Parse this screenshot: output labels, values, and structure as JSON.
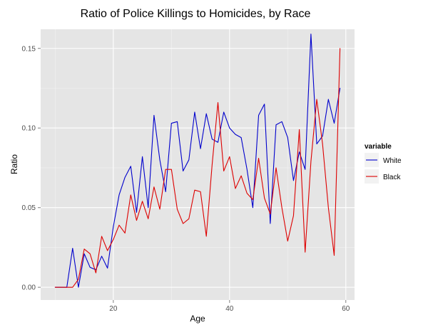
{
  "chart_data": {
    "type": "line",
    "title": "Ratio of Police Killings to Homicides, by Race",
    "xlabel": "Age",
    "ylabel": "Ratio",
    "xlim": [
      7.5,
      61.5
    ],
    "ylim": [
      -0.008,
      0.162
    ],
    "xticks": [
      20,
      40,
      60
    ],
    "xtick_labels": [
      "20",
      "40",
      "60"
    ],
    "yticks": [
      0.0,
      0.05,
      0.1,
      0.15
    ],
    "ytick_labels": [
      "0.00",
      "0.05",
      "0.10",
      "0.15"
    ],
    "grid": true,
    "legend_title": "variable",
    "legend_position": "right",
    "series": [
      {
        "name": "White",
        "color": "#0000cc",
        "x": [
          10,
          11,
          12,
          13,
          14,
          15,
          16,
          17,
          18,
          19,
          20,
          21,
          22,
          23,
          24,
          25,
          26,
          27,
          28,
          29,
          30,
          31,
          32,
          33,
          34,
          35,
          36,
          37,
          38,
          39,
          40,
          41,
          42,
          43,
          44,
          45,
          46,
          47,
          48,
          49,
          50,
          51,
          52,
          53,
          54,
          55,
          56,
          57,
          58,
          59
        ],
        "values": [
          0.0,
          0.0,
          0.0,
          0.0245,
          0.0,
          0.021,
          0.0125,
          0.011,
          0.0195,
          0.012,
          0.038,
          0.058,
          0.069,
          0.076,
          0.047,
          0.082,
          0.05,
          0.108,
          0.08,
          0.06,
          0.103,
          0.104,
          0.073,
          0.08,
          0.11,
          0.087,
          0.109,
          0.093,
          0.091,
          0.11,
          0.1,
          0.096,
          0.094,
          0.074,
          0.05,
          0.108,
          0.115,
          0.04,
          0.102,
          0.104,
          0.094,
          0.067,
          0.085,
          0.074,
          0.159,
          0.09,
          0.095,
          0.118,
          0.103,
          0.125
        ]
      },
      {
        "name": "Black",
        "color": "#dd0000",
        "x": [
          10,
          11,
          12,
          13,
          14,
          15,
          16,
          17,
          18,
          19,
          20,
          21,
          22,
          23,
          24,
          25,
          26,
          27,
          28,
          29,
          30,
          31,
          32,
          33,
          34,
          35,
          36,
          37,
          38,
          39,
          40,
          41,
          42,
          43,
          44,
          45,
          46,
          47,
          48,
          49,
          50,
          51,
          52,
          53,
          54,
          55,
          56,
          57,
          58,
          59
        ],
        "values": [
          0.0,
          0.0,
          0.0,
          0.0,
          0.005,
          0.024,
          0.021,
          0.009,
          0.032,
          0.023,
          0.03,
          0.039,
          0.034,
          0.058,
          0.042,
          0.054,
          0.043,
          0.063,
          0.049,
          0.074,
          0.074,
          0.049,
          0.04,
          0.043,
          0.061,
          0.06,
          0.032,
          0.077,
          0.116,
          0.073,
          0.082,
          0.062,
          0.07,
          0.059,
          0.055,
          0.081,
          0.056,
          0.046,
          0.075,
          0.05,
          0.029,
          0.045,
          0.099,
          0.022,
          0.079,
          0.118,
          0.09,
          0.05,
          0.02,
          0.15
        ]
      }
    ]
  }
}
